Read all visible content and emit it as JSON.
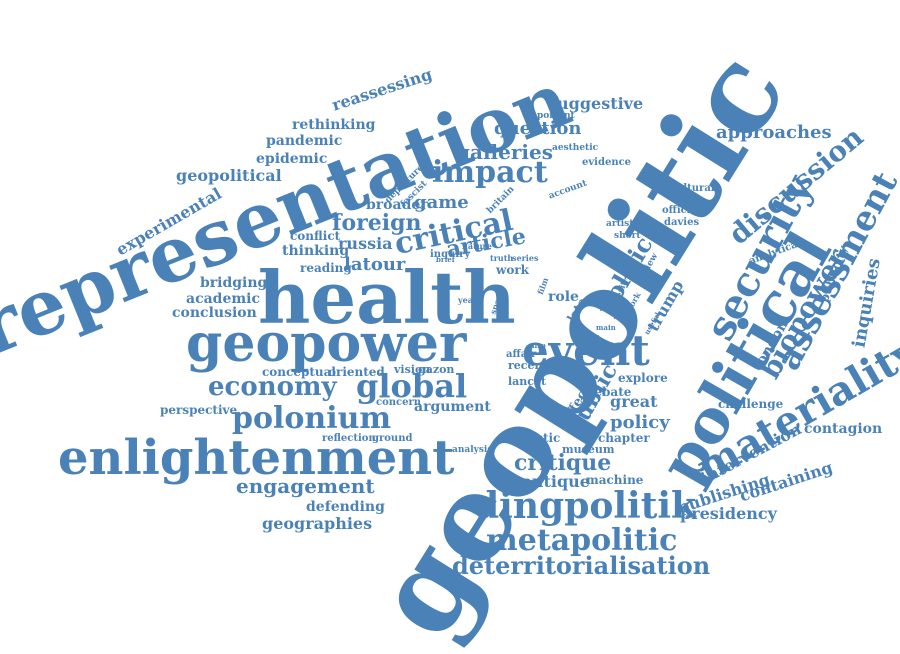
{
  "accent_color": "#4a82b8",
  "words": [
    {
      "id": "geopolitic",
      "text": "geopolitic"
    },
    {
      "id": "representation",
      "text": "representation"
    },
    {
      "id": "health",
      "text": "health"
    },
    {
      "id": "political",
      "text": "political"
    },
    {
      "id": "enlightenment",
      "text": "enlightenment"
    },
    {
      "id": "geopower",
      "text": "geopower"
    },
    {
      "id": "materiality",
      "text": "materiality"
    },
    {
      "id": "security",
      "text": "security"
    },
    {
      "id": "critical",
      "text": "critical"
    },
    {
      "id": "event",
      "text": "event"
    },
    {
      "id": "dingpolitik",
      "text": "dingpolitik"
    },
    {
      "id": "metapolitic",
      "text": "metapolitic"
    },
    {
      "id": "polonium",
      "text": "polonium"
    },
    {
      "id": "economy",
      "text": "economy"
    },
    {
      "id": "global",
      "text": "global"
    },
    {
      "id": "assessment",
      "text": "assessment"
    },
    {
      "id": "discussion",
      "text": "discussion"
    },
    {
      "id": "biopower",
      "text": "biopower"
    },
    {
      "id": "impact",
      "text": "impact"
    },
    {
      "id": "deterritorialisation",
      "text": "deterritorialisation"
    },
    {
      "id": "engagement",
      "text": "engagement"
    },
    {
      "id": "critique",
      "text": "critique"
    },
    {
      "id": "article",
      "text": "article"
    },
    {
      "id": "politic",
      "text": "politic"
    },
    {
      "id": "public",
      "text": "public"
    },
    {
      "id": "galleries",
      "text": "galleries"
    },
    {
      "id": "approaches",
      "text": "approaches"
    },
    {
      "id": "question",
      "text": "question"
    },
    {
      "id": "suggestive",
      "text": "suggestive"
    },
    {
      "id": "policy",
      "text": "policy"
    },
    {
      "id": "foreign",
      "text": "foreign"
    },
    {
      "id": "russia",
      "text": "russia"
    },
    {
      "id": "latour",
      "text": "latour"
    },
    {
      "id": "game",
      "text": "game"
    },
    {
      "id": "geopolitical",
      "text": "geopolitical"
    },
    {
      "id": "epidemic",
      "text": "epidemic"
    },
    {
      "id": "pandemic",
      "text": "pandemic"
    },
    {
      "id": "rethinking",
      "text": "rethinking"
    },
    {
      "id": "reassessing",
      "text": "reassessing"
    },
    {
      "id": "experimental",
      "text": "experimental"
    },
    {
      "id": "broader",
      "text": "broader"
    },
    {
      "id": "conflict",
      "text": "conflict"
    },
    {
      "id": "thinking",
      "text": "thinking"
    },
    {
      "id": "reading",
      "text": "reading"
    },
    {
      "id": "bridging",
      "text": "bridging"
    },
    {
      "id": "academic",
      "text": "academic"
    },
    {
      "id": "conclusion",
      "text": "conclusion"
    },
    {
      "id": "conceptual",
      "text": "conceptual"
    },
    {
      "id": "oriented",
      "text": "oriented"
    },
    {
      "id": "perspective",
      "text": "perspective"
    },
    {
      "id": "argument",
      "text": "argument"
    },
    {
      "id": "defending",
      "text": "defending"
    },
    {
      "id": "geographies",
      "text": "geographies"
    },
    {
      "id": "boutique",
      "text": "boutique"
    },
    {
      "id": "publishing",
      "text": "publishing"
    },
    {
      "id": "presidency",
      "text": "presidency"
    },
    {
      "id": "containing",
      "text": "containing"
    },
    {
      "id": "intervention",
      "text": "intervention"
    },
    {
      "id": "contagion",
      "text": "contagion"
    },
    {
      "id": "challenge",
      "text": "challenge"
    },
    {
      "id": "inquiries",
      "text": "inquiries"
    },
    {
      "id": "publicity",
      "text": "publicity"
    },
    {
      "id": "london",
      "text": "london"
    },
    {
      "id": "great",
      "text": "great"
    },
    {
      "id": "trump",
      "text": "trump"
    },
    {
      "id": "chapter",
      "text": "chapter"
    },
    {
      "id": "explore",
      "text": "explore"
    },
    {
      "id": "debate",
      "text": "debate"
    },
    {
      "id": "machine",
      "text": "machine"
    },
    {
      "id": "museum",
      "text": "museum"
    },
    {
      "id": "artistic",
      "text": "artistic"
    },
    {
      "id": "role",
      "text": "role"
    },
    {
      "id": "work",
      "text": "work"
    },
    {
      "id": "recent",
      "text": "recent"
    },
    {
      "id": "lancet",
      "text": "lancet"
    },
    {
      "id": "affect",
      "text": "affect"
    },
    {
      "id": "affair",
      "text": "affair"
    },
    {
      "id": "vision",
      "text": "vision"
    },
    {
      "id": "gazon",
      "text": "gazon"
    },
    {
      "id": "concern",
      "text": "concern"
    },
    {
      "id": "reflection",
      "text": "reflection"
    },
    {
      "id": "ground",
      "text": "ground"
    },
    {
      "id": "analysis",
      "text": "analysis"
    },
    {
      "id": "cultural",
      "text": "cultural"
    },
    {
      "id": "official",
      "text": "official"
    },
    {
      "id": "davies",
      "text": "davies"
    },
    {
      "id": "analytical",
      "text": "analytical"
    },
    {
      "id": "evidence",
      "text": "evidence"
    },
    {
      "id": "aesthetic",
      "text": "aesthetic"
    },
    {
      "id": "important",
      "text": "important"
    },
    {
      "id": "britain",
      "text": "britain"
    },
    {
      "id": "fascist",
      "text": "fascist"
    },
    {
      "id": "departure",
      "text": "departure"
    },
    {
      "id": "inquiry",
      "text": "inquiry"
    },
    {
      "id": "nature",
      "text": "nature"
    },
    {
      "id": "truth",
      "text": "truth"
    },
    {
      "id": "series",
      "text": "series"
    },
    {
      "id": "film",
      "text": "film"
    },
    {
      "id": "late",
      "text": "late"
    },
    {
      "id": "space",
      "text": "space"
    },
    {
      "id": "year",
      "text": "year"
    },
    {
      "id": "brexit",
      "text": "brexit"
    },
    {
      "id": "artwork",
      "text": "artwork"
    },
    {
      "id": "review",
      "text": "review"
    },
    {
      "id": "artist",
      "text": "artist"
    },
    {
      "id": "short",
      "text": "short"
    },
    {
      "id": "account",
      "text": "account"
    },
    {
      "id": "place",
      "text": "place"
    },
    {
      "id": "main",
      "text": "main"
    },
    {
      "id": "saron",
      "text": "saron"
    },
    {
      "id": "useful",
      "text": "useful"
    },
    {
      "id": "also",
      "text": "also"
    },
    {
      "id": "brief",
      "text": "brief"
    }
  ]
}
